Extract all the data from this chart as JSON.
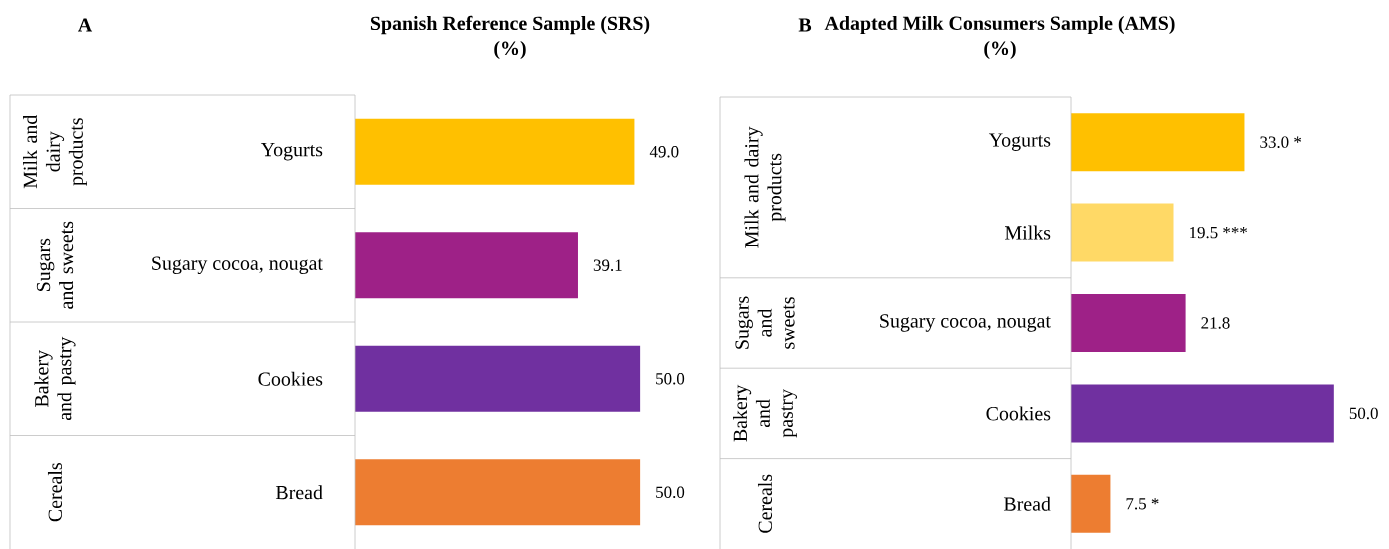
{
  "chart_data": [
    {
      "type": "bar",
      "orientation": "horizontal",
      "title": "Spanish Reference Sample (SRS)",
      "subtitle": "(%)",
      "categories": [
        "Yogurts",
        "Sugary cocoa, nougat",
        "Cookies",
        "Bread"
      ],
      "values": [
        49.0,
        39.1,
        50.0,
        50.0
      ],
      "colors": [
        "#ffc000",
        "#9e2187",
        "#7030a0",
        "#ed7d31"
      ],
      "value_labels": [
        "49.0",
        "39.1",
        "50.0",
        "50.0"
      ],
      "annotations": [
        "A",
        "Milk and dairy products",
        "Sugars and sweets",
        "Bakery and pastry",
        "Cereals"
      ]
    },
    {
      "type": "bar",
      "orientation": "horizontal",
      "title": "Adapted Milk Consumers Sample (AMS)",
      "subtitle": "(%)",
      "categories": [
        "Yogurts",
        "Milks",
        "Sugary cocoa, nougat",
        "Cookies",
        "Bread"
      ],
      "values": [
        33.0,
        19.5,
        21.8,
        50.0,
        7.5
      ],
      "colors": [
        "#ffc000",
        "#ffd966",
        "#9e2187",
        "#7030a0",
        "#ed7d31"
      ],
      "value_labels": [
        "33.0   *",
        "19.5   ***",
        "21.8",
        "50.0",
        "7.5   *"
      ],
      "annotations": [
        "B",
        "Milk and dairy products",
        "Sugars and sweets",
        "Bakery and pastry",
        "Cereals"
      ]
    }
  ]
}
